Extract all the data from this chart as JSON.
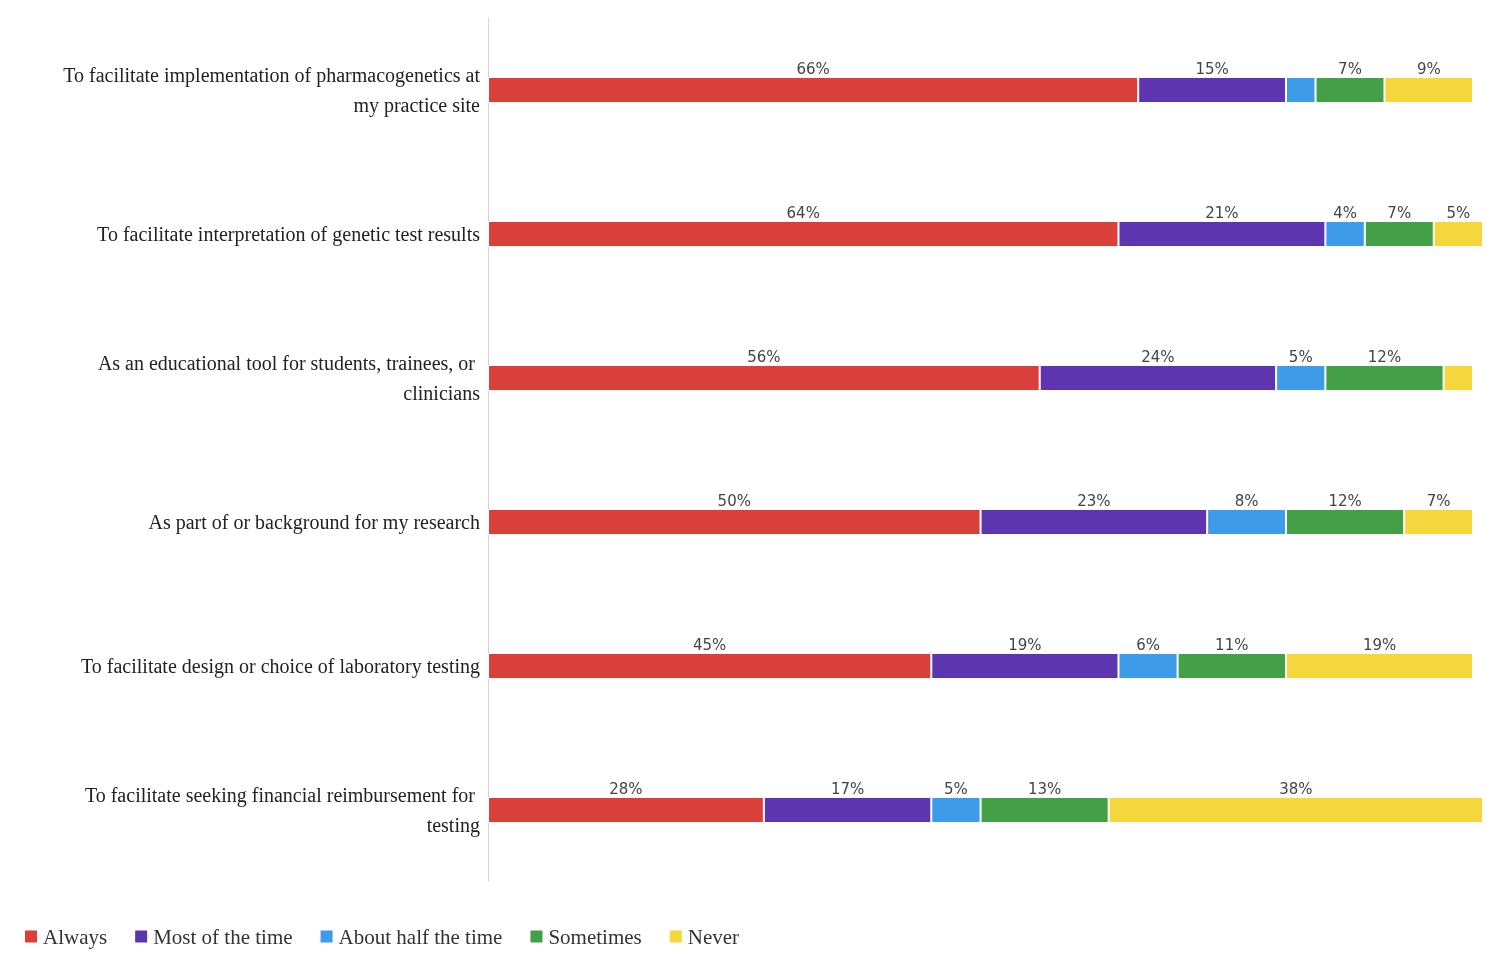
{
  "chart_data": {
    "type": "bar",
    "orientation": "horizontal",
    "stacked": true,
    "legend": "bottom left",
    "categories": [
      "To facilitate implementation of pharmacogenetics at my practice site",
      "To facilitate interpretation of genetic test results",
      "As an educational tool for students, trainees, or clinicians",
      "As part of or background for my research",
      "To facilitate design or choice of laboratory testing",
      "To facilitate seeking financial reimbursement for testing"
    ],
    "series": [
      {
        "name": "Always",
        "color": "#db3f3a",
        "values": [
          66,
          64,
          56,
          50,
          45,
          28
        ],
        "value_labels": [
          "66%",
          "64%",
          "56%",
          "50%",
          "45%",
          "28%"
        ]
      },
      {
        "name": "Most of the time",
        "color": "#5e35b1",
        "values": [
          15,
          21,
          24,
          23,
          19,
          17
        ],
        "value_labels": [
          "15%",
          "21%",
          "24%",
          "23%",
          "19%",
          "17%"
        ]
      },
      {
        "name": "About half the time",
        "color": "#3d9be9",
        "values": [
          3,
          4,
          5,
          8,
          6,
          5
        ],
        "value_labels": [
          null,
          "4%",
          "5%",
          "8%",
          "6%",
          "5%"
        ]
      },
      {
        "name": "Sometimes",
        "color": "#43a047",
        "values": [
          7,
          7,
          12,
          12,
          11,
          13
        ],
        "value_labels": [
          "7%",
          "7%",
          "12%",
          "12%",
          "11%",
          "13%"
        ]
      },
      {
        "name": "Never",
        "color": "#f5d63d",
        "values": [
          9,
          5,
          3,
          7,
          19,
          38
        ],
        "value_labels": [
          "9%",
          "5%",
          null,
          "7%",
          "19%",
          "38%"
        ]
      }
    ]
  }
}
